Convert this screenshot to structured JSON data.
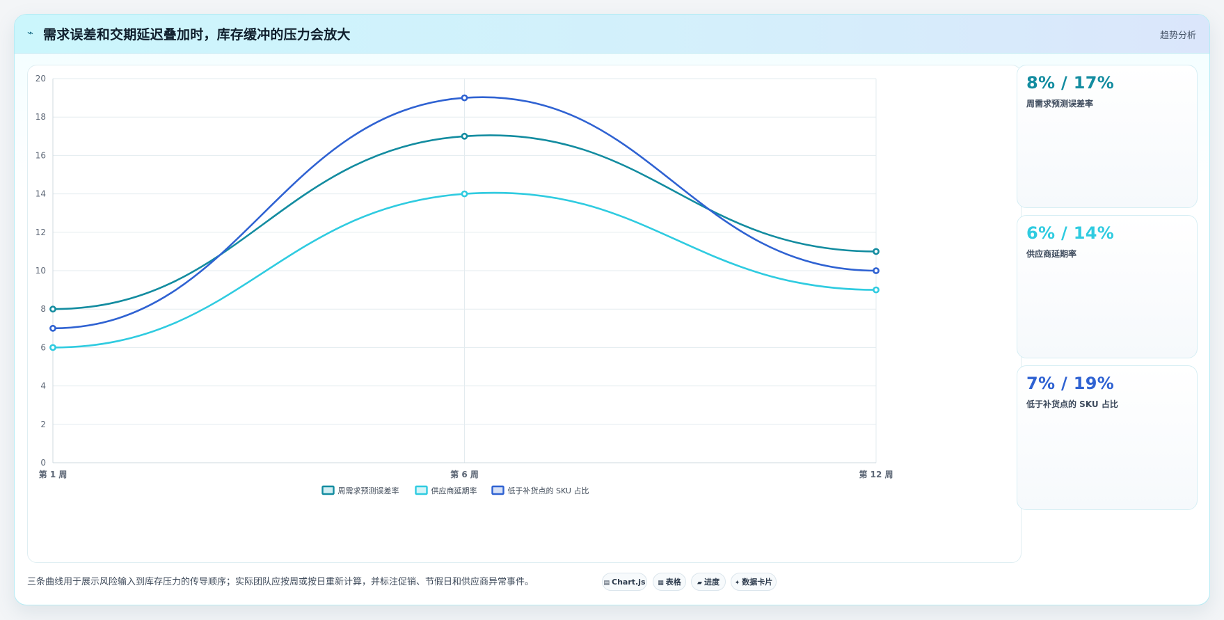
{
  "header": {
    "icon": "activity-icon",
    "title": "需求误差和交期延迟叠加时，库存缓冲的压力会放大",
    "tag": "趋势分析"
  },
  "stats": [
    {
      "value": "8% / 17%",
      "label": "周需求预测误差率",
      "color": "#138ca0"
    },
    {
      "value": "6% / 14%",
      "label": "供应商延期率",
      "color": "#2fcbe0"
    },
    {
      "value": "7% / 19%",
      "label": "低于补货点的 SKU 占比",
      "color": "#2f62d2"
    }
  ],
  "footer": {
    "note": "三条曲线用于展示风险输入到库存压力的传导顺序；实际团队应按周或按日重新计算，并标注促销、节假日和供应商异常事件。",
    "pills": [
      {
        "icon": "chart-icon",
        "glyph": "▤",
        "label": "Chart.js"
      },
      {
        "icon": "table-icon",
        "glyph": "▦",
        "label": "表格"
      },
      {
        "icon": "progress-icon",
        "glyph": "▰",
        "label": "进度"
      },
      {
        "icon": "card-icon",
        "glyph": "✦",
        "label": "数据卡片"
      }
    ]
  },
  "chart_data": {
    "type": "line",
    "categories": [
      "第 1 周",
      "第 6 周",
      "第 12 周"
    ],
    "ylim": [
      0,
      20
    ],
    "yticks": [
      0,
      2,
      4,
      6,
      8,
      10,
      12,
      14,
      16,
      18,
      20
    ],
    "grid": true,
    "legend_position": "bottom",
    "series": [
      {
        "name": "周需求预测误差率",
        "values": [
          8,
          17,
          11
        ],
        "color": "#138ca0",
        "fill": "#d2eef3"
      },
      {
        "name": "供应商延期率",
        "values": [
          6,
          14,
          9
        ],
        "color": "#2fcbe0",
        "fill": "#d5f4f8"
      },
      {
        "name": "低于补货点的 SKU 占比",
        "values": [
          7,
          19,
          10
        ],
        "color": "#2f62d2",
        "fill": "#d7e1f6"
      }
    ]
  }
}
